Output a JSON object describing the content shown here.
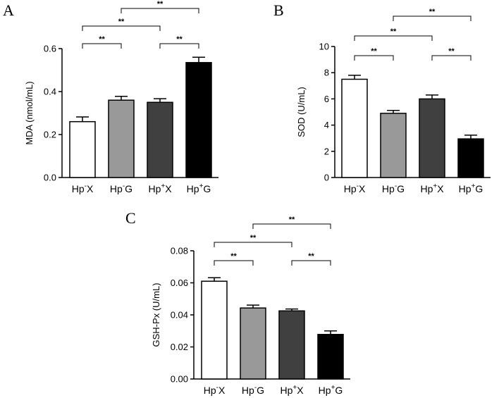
{
  "chart_data": [
    {
      "type": "bar",
      "panel": "A",
      "ylabel": "MDA (nmol/mL)",
      "ylim": [
        0,
        0.6
      ],
      "yticks": [
        0.0,
        0.2,
        0.4,
        0.6
      ],
      "ytick_labels": [
        "0.0",
        "0.2",
        "0.4",
        "0.6"
      ],
      "categories": [
        {
          "base": "Hp",
          "sup": "-",
          "suffix": "X"
        },
        {
          "base": "Hp",
          "sup": "-",
          "suffix": "G"
        },
        {
          "base": "Hp",
          "sup": "+",
          "suffix": "X"
        },
        {
          "base": "Hp",
          "sup": "+",
          "suffix": "G"
        }
      ],
      "values": [
        0.26,
        0.36,
        0.35,
        0.535
      ],
      "errors": [
        0.022,
        0.018,
        0.017,
        0.025
      ],
      "fills": [
        "#ffffff",
        "#999999",
        "#404040",
        "#000000"
      ],
      "significance": [
        {
          "from": 0,
          "to": 1,
          "label": "**",
          "level": 1
        },
        {
          "from": 2,
          "to": 3,
          "label": "**",
          "level": 1
        },
        {
          "from": 0,
          "to": 2,
          "label": "**",
          "level": 2
        },
        {
          "from": 1,
          "to": 3,
          "label": "**",
          "level": 3
        }
      ]
    },
    {
      "type": "bar",
      "panel": "B",
      "ylabel": "SOD (U/mL)",
      "ylim": [
        0,
        10
      ],
      "yticks": [
        0,
        2,
        4,
        6,
        8,
        10
      ],
      "ytick_labels": [
        "0",
        "2",
        "4",
        "6",
        "8",
        "10"
      ],
      "categories": [
        {
          "base": "Hp",
          "sup": "-",
          "suffix": "X"
        },
        {
          "base": "Hp",
          "sup": "-",
          "suffix": "G"
        },
        {
          "base": "Hp",
          "sup": "+",
          "suffix": "X"
        },
        {
          "base": "Hp",
          "sup": "+",
          "suffix": "G"
        }
      ],
      "values": [
        7.5,
        4.9,
        6.0,
        2.95
      ],
      "errors": [
        0.3,
        0.22,
        0.3,
        0.28
      ],
      "fills": [
        "#ffffff",
        "#999999",
        "#404040",
        "#000000"
      ],
      "significance": [
        {
          "from": 0,
          "to": 1,
          "label": "**",
          "level": 1
        },
        {
          "from": 2,
          "to": 3,
          "label": "**",
          "level": 1
        },
        {
          "from": 0,
          "to": 2,
          "label": "**",
          "level": 2
        },
        {
          "from": 1,
          "to": 3,
          "label": "**",
          "level": 3
        }
      ]
    },
    {
      "type": "bar",
      "panel": "C",
      "ylabel": "GSH-Px (U/mL)",
      "ylim": [
        0,
        0.08
      ],
      "yticks": [
        0.0,
        0.02,
        0.04,
        0.06,
        0.08
      ],
      "ytick_labels": [
        "0.00",
        "0.02",
        "0.04",
        "0.06",
        "0.08"
      ],
      "categories": [
        {
          "base": "Hp",
          "sup": "-",
          "suffix": "X"
        },
        {
          "base": "Hp",
          "sup": "-",
          "suffix": "G"
        },
        {
          "base": "Hp",
          "sup": "+",
          "suffix": "X"
        },
        {
          "base": "Hp",
          "sup": "+",
          "suffix": "G"
        }
      ],
      "values": [
        0.061,
        0.0443,
        0.0425,
        0.0278
      ],
      "errors": [
        0.0022,
        0.0018,
        0.0012,
        0.0022
      ],
      "fills": [
        "#ffffff",
        "#999999",
        "#404040",
        "#000000"
      ],
      "significance": [
        {
          "from": 0,
          "to": 1,
          "label": "**",
          "level": 1
        },
        {
          "from": 2,
          "to": 3,
          "label": "**",
          "level": 1
        },
        {
          "from": 0,
          "to": 2,
          "label": "**",
          "level": 2
        },
        {
          "from": 1,
          "to": 3,
          "label": "**",
          "level": 3
        }
      ]
    }
  ]
}
